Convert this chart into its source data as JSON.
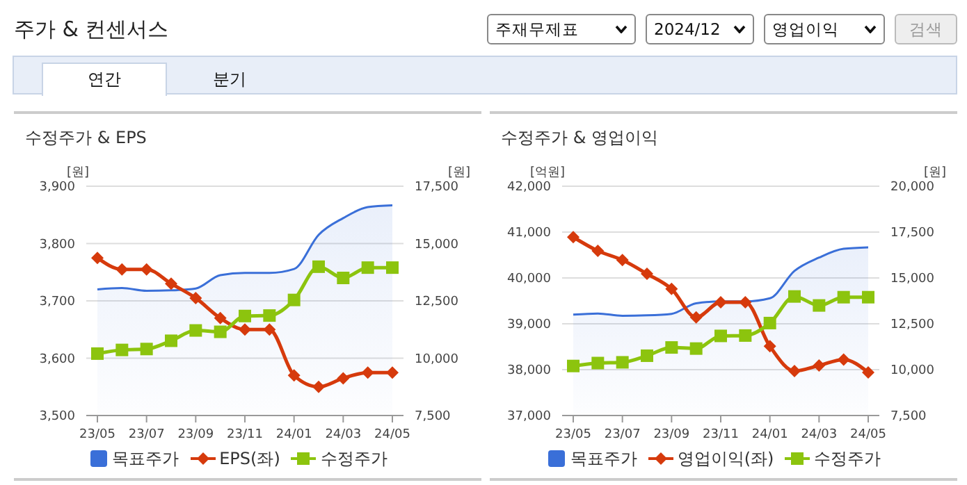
{
  "chart_data": [
    {
      "type": "other",
      "title": "주가 & 컨센서스",
      "annotations": [
        "주재무제표",
        "2024/12",
        "영업이익",
        "검색",
        "연간",
        "분기"
      ]
    },
    {
      "type": "line",
      "title": "수정주가 & EPS",
      "ylabel": "[원]",
      "y2label": "[원]",
      "categories": [
        "23/05",
        null,
        "23/07",
        null,
        "23/09",
        null,
        "23/11",
        null,
        "24/01",
        null,
        "24/03",
        null,
        "24/05"
      ],
      "series": [
        {
          "name": "목표주가",
          "type": "area",
          "axis": "y2",
          "color": "#3a6fd8",
          "values": [
            13000,
            13060,
            12940,
            12960,
            13040,
            13620,
            13720,
            13720,
            13890,
            15380,
            16110,
            16590,
            16670
          ]
        },
        {
          "name": "EPS(좌)",
          "type": "line",
          "marker": "diamond",
          "color": "#d63a0c",
          "values": [
            3775,
            3755,
            3755,
            3730,
            3705,
            3670,
            3650,
            3650,
            3570,
            3550,
            3565,
            3575,
            3575
          ]
        },
        {
          "name": "수정주가",
          "type": "line",
          "axis": "y2",
          "marker": "square",
          "color": "#8cc40e",
          "values": [
            10200,
            10360,
            10400,
            10760,
            11210,
            11150,
            11840,
            11860,
            12540,
            13990,
            13500,
            13950,
            13950
          ]
        }
      ],
      "ylim": [
        3500,
        3900
      ],
      "yticks": [
        {
          "value": 3500,
          "label": "3,500"
        },
        {
          "value": 3600,
          "label": "3,600"
        },
        {
          "value": 3700,
          "label": "3,700"
        },
        {
          "value": 3800,
          "label": "3,800"
        },
        {
          "value": 3900,
          "label": "3,900"
        }
      ],
      "y2lim": [
        7500,
        17500
      ],
      "y2ticks": [
        {
          "value": 7500,
          "label": "7,500"
        },
        {
          "value": 10000,
          "label": "10,000"
        },
        {
          "value": 12500,
          "label": "12,500"
        },
        {
          "value": 15000,
          "label": "15,000"
        },
        {
          "value": 17500,
          "label": "17,500"
        }
      ],
      "grid": "y",
      "legend": "bottom"
    },
    {
      "type": "line",
      "title": "수정주가 & 영업이익",
      "ylabel": "[억원]",
      "y2label": "[원]",
      "categories": [
        "23/05",
        null,
        "23/07",
        null,
        "23/09",
        null,
        "23/11",
        null,
        "24/01",
        null,
        "24/03",
        null,
        "24/05"
      ],
      "series": [
        {
          "name": "목표주가",
          "type": "area",
          "axis": "y2",
          "color": "#3a6fd8",
          "values": [
            13000,
            13060,
            12940,
            12960,
            13040,
            13620,
            13720,
            13720,
            13890,
            15380,
            16110,
            16590,
            16670
          ]
        },
        {
          "name": "영업이익(좌)",
          "type": "line",
          "marker": "diamond",
          "color": "#d63a0c",
          "values": [
            40890,
            40590,
            40390,
            40090,
            39760,
            39140,
            39470,
            39470,
            38510,
            37970,
            38090,
            38220,
            37940
          ]
        },
        {
          "name": "수정주가",
          "type": "line",
          "axis": "y2",
          "marker": "square",
          "color": "#8cc40e",
          "values": [
            10200,
            10360,
            10400,
            10760,
            11210,
            11150,
            11840,
            11860,
            12540,
            13990,
            13500,
            13950,
            13950
          ]
        }
      ],
      "ylim": [
        37000,
        42000
      ],
      "yticks": [
        {
          "value": 37000,
          "label": "37,000"
        },
        {
          "value": 38000,
          "label": "38,000"
        },
        {
          "value": 39000,
          "label": "39,000"
        },
        {
          "value": 40000,
          "label": "40,000"
        },
        {
          "value": 41000,
          "label": "41,000"
        },
        {
          "value": 42000,
          "label": "42,000"
        }
      ],
      "y2lim": [
        7500,
        20000
      ],
      "y2ticks": [
        {
          "value": 7500,
          "label": "7,500"
        },
        {
          "value": 10000,
          "label": "10,000"
        },
        {
          "value": 12500,
          "label": "12,500"
        },
        {
          "value": 15000,
          "label": "15,000"
        },
        {
          "value": 17500,
          "label": "17,500"
        },
        {
          "value": 20000,
          "label": "20,000"
        }
      ],
      "grid": "y",
      "legend": "bottom"
    }
  ]
}
